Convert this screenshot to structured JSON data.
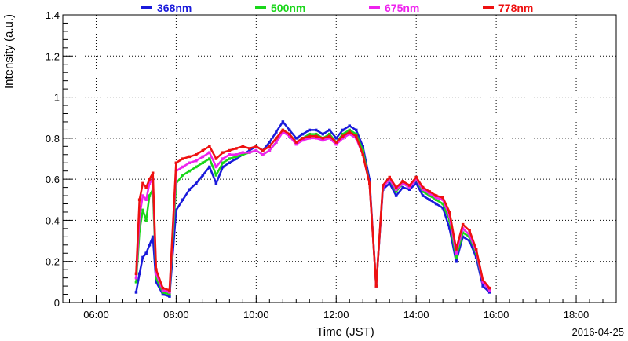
{
  "chart_data": {
    "type": "scatter",
    "xlabel": "Time (JST)",
    "ylabel": "Intensity (a.u.)",
    "date_label": "2016-04-25",
    "xlim": [
      "05:10",
      "19:00"
    ],
    "ylim": [
      0,
      1.4
    ],
    "x_ticks": [
      "06:00",
      "08:00",
      "10:00",
      "12:00",
      "14:00",
      "16:00",
      "18:00"
    ],
    "y_ticks": [
      "0",
      "0.2",
      "0.4",
      "0.6",
      "0.8",
      "1",
      "1.2",
      "1.4"
    ],
    "grid": true,
    "legend_position": "top",
    "series": [
      {
        "name": "368nm",
        "color": "#1a1adb",
        "points": [
          [
            "07:00",
            0.05
          ],
          [
            "07:05",
            0.14
          ],
          [
            "07:10",
            0.22
          ],
          [
            "07:15",
            0.24
          ],
          [
            "07:20",
            0.28
          ],
          [
            "07:25",
            0.32
          ],
          [
            "07:30",
            0.1
          ],
          [
            "07:40",
            0.04
          ],
          [
            "07:50",
            0.03
          ],
          [
            "08:00",
            0.45
          ],
          [
            "08:10",
            0.5
          ],
          [
            "08:20",
            0.55
          ],
          [
            "08:30",
            0.58
          ],
          [
            "08:40",
            0.62
          ],
          [
            "08:50",
            0.66
          ],
          [
            "09:00",
            0.58
          ],
          [
            "09:10",
            0.66
          ],
          [
            "09:20",
            0.68
          ],
          [
            "09:30",
            0.7
          ],
          [
            "09:40",
            0.72
          ],
          [
            "09:50",
            0.74
          ],
          [
            "10:00",
            0.76
          ],
          [
            "10:10",
            0.74
          ],
          [
            "10:20",
            0.78
          ],
          [
            "10:30",
            0.83
          ],
          [
            "10:40",
            0.88
          ],
          [
            "10:50",
            0.84
          ],
          [
            "11:00",
            0.8
          ],
          [
            "11:10",
            0.82
          ],
          [
            "11:20",
            0.84
          ],
          [
            "11:30",
            0.84
          ],
          [
            "11:40",
            0.82
          ],
          [
            "11:50",
            0.84
          ],
          [
            "12:00",
            0.8
          ],
          [
            "12:10",
            0.84
          ],
          [
            "12:20",
            0.86
          ],
          [
            "12:30",
            0.84
          ],
          [
            "12:40",
            0.76
          ],
          [
            "12:50",
            0.6
          ],
          [
            "13:00",
            0.08
          ],
          [
            "13:10",
            0.55
          ],
          [
            "13:20",
            0.58
          ],
          [
            "13:30",
            0.52
          ],
          [
            "13:40",
            0.56
          ],
          [
            "13:50",
            0.55
          ],
          [
            "14:00",
            0.58
          ],
          [
            "14:10",
            0.52
          ],
          [
            "14:20",
            0.5
          ],
          [
            "14:30",
            0.48
          ],
          [
            "14:40",
            0.46
          ],
          [
            "14:50",
            0.36
          ],
          [
            "15:00",
            0.2
          ],
          [
            "15:10",
            0.32
          ],
          [
            "15:20",
            0.3
          ],
          [
            "15:30",
            0.22
          ],
          [
            "15:40",
            0.08
          ],
          [
            "15:50",
            0.05
          ]
        ]
      },
      {
        "name": "500nm",
        "color": "#19d619",
        "points": [
          [
            "07:00",
            0.1
          ],
          [
            "07:05",
            0.35
          ],
          [
            "07:10",
            0.45
          ],
          [
            "07:15",
            0.4
          ],
          [
            "07:20",
            0.52
          ],
          [
            "07:25",
            0.55
          ],
          [
            "07:30",
            0.12
          ],
          [
            "07:40",
            0.05
          ],
          [
            "07:50",
            0.04
          ],
          [
            "08:00",
            0.58
          ],
          [
            "08:10",
            0.62
          ],
          [
            "08:20",
            0.64
          ],
          [
            "08:30",
            0.66
          ],
          [
            "08:40",
            0.68
          ],
          [
            "08:50",
            0.7
          ],
          [
            "09:00",
            0.62
          ],
          [
            "09:10",
            0.68
          ],
          [
            "09:20",
            0.7
          ],
          [
            "09:30",
            0.71
          ],
          [
            "09:40",
            0.72
          ],
          [
            "09:50",
            0.73
          ],
          [
            "10:00",
            0.74
          ],
          [
            "10:10",
            0.72
          ],
          [
            "10:20",
            0.74
          ],
          [
            "10:30",
            0.78
          ],
          [
            "10:40",
            0.84
          ],
          [
            "10:50",
            0.82
          ],
          [
            "11:00",
            0.78
          ],
          [
            "11:10",
            0.8
          ],
          [
            "11:20",
            0.82
          ],
          [
            "11:30",
            0.82
          ],
          [
            "11:40",
            0.8
          ],
          [
            "11:50",
            0.82
          ],
          [
            "12:00",
            0.78
          ],
          [
            "12:10",
            0.82
          ],
          [
            "12:20",
            0.84
          ],
          [
            "12:30",
            0.82
          ],
          [
            "12:40",
            0.74
          ],
          [
            "12:50",
            0.58
          ],
          [
            "13:00",
            0.08
          ],
          [
            "13:10",
            0.56
          ],
          [
            "13:20",
            0.6
          ],
          [
            "13:30",
            0.54
          ],
          [
            "13:40",
            0.58
          ],
          [
            "13:50",
            0.56
          ],
          [
            "14:00",
            0.6
          ],
          [
            "14:10",
            0.54
          ],
          [
            "14:20",
            0.52
          ],
          [
            "14:30",
            0.5
          ],
          [
            "14:40",
            0.48
          ],
          [
            "14:50",
            0.4
          ],
          [
            "15:00",
            0.22
          ],
          [
            "15:10",
            0.34
          ],
          [
            "15:20",
            0.32
          ],
          [
            "15:30",
            0.24
          ],
          [
            "15:40",
            0.1
          ],
          [
            "15:50",
            0.06
          ]
        ]
      },
      {
        "name": "675nm",
        "color": "#ee22ee",
        "points": [
          [
            "07:00",
            0.12
          ],
          [
            "07:05",
            0.42
          ],
          [
            "07:10",
            0.52
          ],
          [
            "07:15",
            0.5
          ],
          [
            "07:20",
            0.58
          ],
          [
            "07:25",
            0.6
          ],
          [
            "07:30",
            0.14
          ],
          [
            "07:40",
            0.06
          ],
          [
            "07:50",
            0.05
          ],
          [
            "08:00",
            0.64
          ],
          [
            "08:10",
            0.66
          ],
          [
            "08:20",
            0.68
          ],
          [
            "08:30",
            0.69
          ],
          [
            "08:40",
            0.71
          ],
          [
            "08:50",
            0.73
          ],
          [
            "09:00",
            0.66
          ],
          [
            "09:10",
            0.7
          ],
          [
            "09:20",
            0.72
          ],
          [
            "09:30",
            0.72
          ],
          [
            "09:40",
            0.73
          ],
          [
            "09:50",
            0.73
          ],
          [
            "10:00",
            0.74
          ],
          [
            "10:10",
            0.72
          ],
          [
            "10:20",
            0.74
          ],
          [
            "10:30",
            0.78
          ],
          [
            "10:40",
            0.83
          ],
          [
            "10:50",
            0.81
          ],
          [
            "11:00",
            0.77
          ],
          [
            "11:10",
            0.79
          ],
          [
            "11:20",
            0.8
          ],
          [
            "11:30",
            0.8
          ],
          [
            "11:40",
            0.79
          ],
          [
            "11:50",
            0.8
          ],
          [
            "12:00",
            0.77
          ],
          [
            "12:10",
            0.8
          ],
          [
            "12:20",
            0.82
          ],
          [
            "12:30",
            0.8
          ],
          [
            "12:40",
            0.72
          ],
          [
            "12:50",
            0.58
          ],
          [
            "13:00",
            0.08
          ],
          [
            "13:10",
            0.56
          ],
          [
            "13:20",
            0.6
          ],
          [
            "13:30",
            0.55
          ],
          [
            "13:40",
            0.58
          ],
          [
            "13:50",
            0.56
          ],
          [
            "14:00",
            0.6
          ],
          [
            "14:10",
            0.55
          ],
          [
            "14:20",
            0.53
          ],
          [
            "14:30",
            0.51
          ],
          [
            "14:40",
            0.5
          ],
          [
            "14:50",
            0.42
          ],
          [
            "15:00",
            0.24
          ],
          [
            "15:10",
            0.36
          ],
          [
            "15:20",
            0.33
          ],
          [
            "15:30",
            0.25
          ],
          [
            "15:40",
            0.1
          ],
          [
            "15:50",
            0.06
          ]
        ]
      },
      {
        "name": "778nm",
        "color": "#ee1111",
        "points": [
          [
            "07:00",
            0.14
          ],
          [
            "07:05",
            0.5
          ],
          [
            "07:10",
            0.58
          ],
          [
            "07:15",
            0.56
          ],
          [
            "07:20",
            0.6
          ],
          [
            "07:25",
            0.63
          ],
          [
            "07:30",
            0.16
          ],
          [
            "07:40",
            0.07
          ],
          [
            "07:50",
            0.06
          ],
          [
            "08:00",
            0.68
          ],
          [
            "08:10",
            0.7
          ],
          [
            "08:20",
            0.71
          ],
          [
            "08:30",
            0.72
          ],
          [
            "08:40",
            0.74
          ],
          [
            "08:50",
            0.76
          ],
          [
            "09:00",
            0.7
          ],
          [
            "09:10",
            0.73
          ],
          [
            "09:20",
            0.74
          ],
          [
            "09:30",
            0.75
          ],
          [
            "09:40",
            0.76
          ],
          [
            "09:50",
            0.75
          ],
          [
            "10:00",
            0.76
          ],
          [
            "10:10",
            0.74
          ],
          [
            "10:20",
            0.76
          ],
          [
            "10:30",
            0.8
          ],
          [
            "10:40",
            0.84
          ],
          [
            "10:50",
            0.82
          ],
          [
            "11:00",
            0.78
          ],
          [
            "11:10",
            0.8
          ],
          [
            "11:20",
            0.81
          ],
          [
            "11:30",
            0.81
          ],
          [
            "11:40",
            0.8
          ],
          [
            "11:50",
            0.81
          ],
          [
            "12:00",
            0.78
          ],
          [
            "12:10",
            0.81
          ],
          [
            "12:20",
            0.83
          ],
          [
            "12:30",
            0.81
          ],
          [
            "12:40",
            0.72
          ],
          [
            "12:50",
            0.58
          ],
          [
            "13:00",
            0.08
          ],
          [
            "13:10",
            0.57
          ],
          [
            "13:20",
            0.61
          ],
          [
            "13:30",
            0.56
          ],
          [
            "13:40",
            0.59
          ],
          [
            "13:50",
            0.57
          ],
          [
            "14:00",
            0.61
          ],
          [
            "14:10",
            0.56
          ],
          [
            "14:20",
            0.54
          ],
          [
            "14:30",
            0.52
          ],
          [
            "14:40",
            0.51
          ],
          [
            "14:50",
            0.44
          ],
          [
            "15:00",
            0.26
          ],
          [
            "15:10",
            0.38
          ],
          [
            "15:20",
            0.35
          ],
          [
            "15:30",
            0.26
          ],
          [
            "15:40",
            0.11
          ],
          [
            "15:50",
            0.07
          ]
        ]
      }
    ]
  }
}
